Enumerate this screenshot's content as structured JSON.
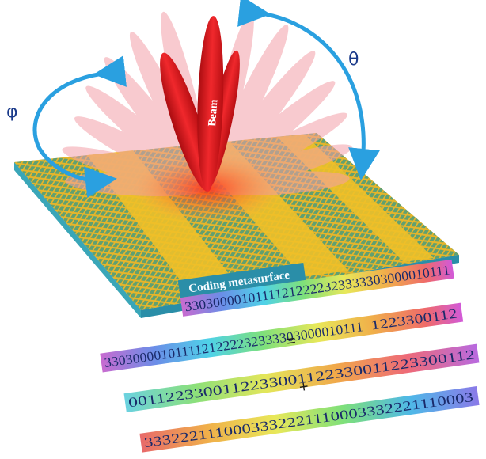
{
  "labels": {
    "theta": "θ",
    "phi": "φ",
    "beam": "Beam",
    "metasurface": "Coding metasurface"
  },
  "sequences": {
    "result": "33030000101111212222323333303000010111",
    "line1": "3303000010111121222232333303000010111 2223300112",
    "seq_a": "3303000010111121222232333303000010111",
    "seq_a_tail": "1223300112",
    "equals": "=",
    "seq_b": "0011223300112233001122330011223300112",
    "plus": "+",
    "seq_c": "3332221110003332221110003332221110003"
  },
  "colors": {
    "beam": "#e8151b",
    "arrow": "#2aa0e0",
    "surface": "#e8b825",
    "tile": "#4aa882"
  }
}
